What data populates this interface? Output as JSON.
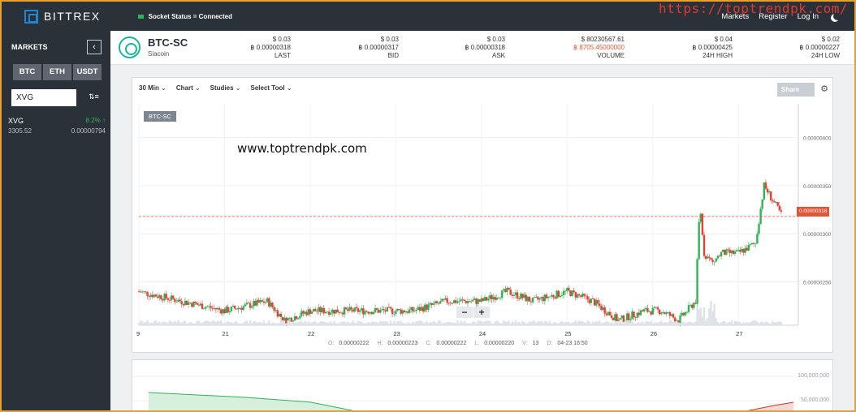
{
  "header": {
    "brand": "BITTREX",
    "socket_status": "Socket Status = Connected",
    "nav": [
      "Markets",
      "Register",
      "Log In"
    ],
    "watermark": "https://toptrendpk.com/"
  },
  "sidebar": {
    "title": "MARKETS",
    "collapse_icon": "‹",
    "tabs": [
      "BTC",
      "ETH",
      "USDT"
    ],
    "search_value": "XVG",
    "sort_icon": "⇅≡",
    "coin": {
      "symbol": "XVG",
      "change": "8.2% ↑",
      "volume": "3305.52",
      "price": "0.00000794"
    }
  },
  "ticker": {
    "pair": "BTC-SC",
    "name": "Siacoin",
    "stats": [
      {
        "usd": "$ 0.03",
        "btc": "฿ 0.00000318",
        "label": "LAST"
      },
      {
        "usd": "$ 0.03",
        "btc": "฿ 0.00000317",
        "label": "BID"
      },
      {
        "usd": "$ 0.03",
        "btc": "฿ 0.00000318",
        "label": "ASK"
      },
      {
        "usd": "$ 80230567.61",
        "btc": "฿ 8705.45000000",
        "label": "VOLUME"
      },
      {
        "usd": "$ 0.04",
        "btc": "฿ 0.00000425",
        "label": "24H HIGH"
      },
      {
        "usd": "$ 0.02",
        "btc": "฿ 0.00000227",
        "label": "24H LOW"
      }
    ]
  },
  "chart": {
    "toolbar": [
      "30 Min",
      "Chart",
      "Studies",
      "Select Tool"
    ],
    "share_label": "Share",
    "symbol_tag": "BTC-SC",
    "watermark_text": "www.toptrendpk.com",
    "current_price": "0.00000318",
    "zoom_out": "−",
    "zoom_in": "+",
    "ohlc": {
      "o_label": "O:",
      "o": "0.00000222",
      "h_label": "H:",
      "h": "0.00000223",
      "c_label": "C:",
      "c": "0.00000222",
      "l_label": "L:",
      "l": "0.00000220",
      "v_label": "V:",
      "v": "13",
      "d_label": "D:",
      "d": "04-23 16:50"
    },
    "colors": {
      "up": "#2fb35a",
      "down": "#e0433a",
      "accent": "#e25537"
    }
  },
  "chart_data": {
    "type": "line",
    "x_ticks": [
      "9",
      "21",
      "22",
      "23",
      "24",
      "25",
      "26",
      "27"
    ],
    "y_ticks": [
      "0.00000400",
      "0.00000350",
      "0.00000300",
      "0.00000250"
    ],
    "ylim": [
      2.05e-06,
      4.35e-06
    ],
    "series": [
      {
        "x": [
          0,
          0.5,
          1,
          1.5,
          1.7,
          2,
          2.4,
          2.8,
          3.2,
          3.6,
          4.0,
          4.3,
          4.6,
          5.0,
          5.3,
          5.6,
          5.9,
          6.1,
          6.3,
          6.5,
          6.55,
          6.6,
          6.7,
          6.8,
          7.0,
          7.2,
          7.3,
          7.5
        ],
        "values": [
          2.4e-06,
          2.3e-06,
          2.2e-06,
          2.3e-06,
          2.1e-06,
          2.2e-06,
          2.2e-06,
          2.2e-06,
          2.2e-06,
          2.3e-06,
          2.3e-06,
          2.4e-06,
          2.3e-06,
          2.4e-06,
          2.3e-06,
          2.1e-06,
          2.2e-06,
          2.2e-06,
          2.1e-06,
          2.3e-06,
          3.3e-06,
          2.8e-06,
          2.7e-06,
          2.8e-06,
          2.8e-06,
          2.9e-06,
          3.5e-06,
          3.2e-06
        ]
      }
    ],
    "grid": true
  },
  "depth": {
    "y_ticks": [
      "100,000,000",
      "50,000,000"
    ]
  }
}
